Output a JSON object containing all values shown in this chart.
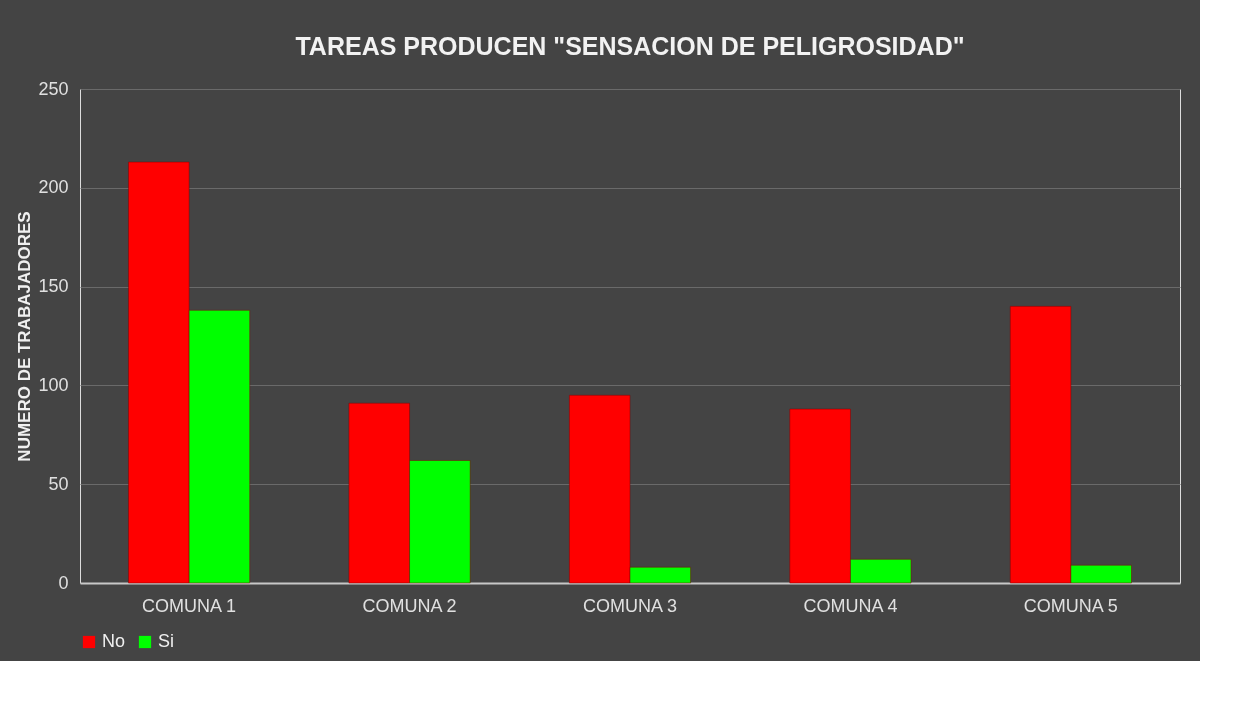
{
  "chart_data": {
    "type": "bar",
    "title": "TAREAS PRODUCEN \"SENSACION DE PELIGROSIDAD\"",
    "ylabel": "NUMERO DE TRABAJADORES",
    "categories": [
      "COMUNA 1",
      "COMUNA 2",
      "COMUNA 3",
      "COMUNA 4",
      "COMUNA 5"
    ],
    "series": [
      {
        "name": "No",
        "color": "#ff0000",
        "values": [
          213,
          91,
          95,
          88,
          140
        ]
      },
      {
        "name": "Si",
        "color": "#00ff00",
        "values": [
          138,
          62,
          8,
          12,
          9
        ]
      }
    ],
    "ylim": [
      0,
      250
    ],
    "yticks": [
      0,
      50,
      100,
      150,
      200,
      250
    ],
    "grid": "y",
    "legend": "bottom"
  }
}
